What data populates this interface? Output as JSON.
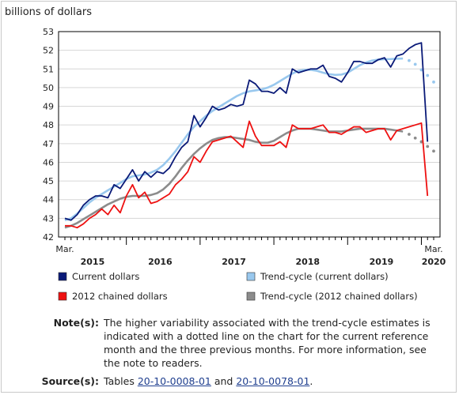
{
  "colors": {
    "current": "#0a1a78",
    "trend_current": "#99c8ee",
    "chained": "#ee1111",
    "trend_chained": "#8c8c8c",
    "axis": "#000000"
  },
  "chart_data": {
    "type": "line",
    "ylabel": "billions of dollars",
    "ylim": [
      42,
      53
    ],
    "yticks": [
      42,
      43,
      44,
      45,
      46,
      47,
      48,
      49,
      50,
      51,
      52,
      53
    ],
    "x_start_label": "Mar.",
    "x_end_label_month": "Mar.",
    "year_labels": [
      "2015",
      "2016",
      "2017",
      "2018",
      "2019",
      "2020"
    ],
    "x": [
      "2015-03",
      "2015-04",
      "2015-05",
      "2015-06",
      "2015-07",
      "2015-08",
      "2015-09",
      "2015-10",
      "2015-11",
      "2015-12",
      "2016-01",
      "2016-02",
      "2016-03",
      "2016-04",
      "2016-05",
      "2016-06",
      "2016-07",
      "2016-08",
      "2016-09",
      "2016-10",
      "2016-11",
      "2016-12",
      "2017-01",
      "2017-02",
      "2017-03",
      "2017-04",
      "2017-05",
      "2017-06",
      "2017-07",
      "2017-08",
      "2017-09",
      "2017-10",
      "2017-11",
      "2017-12",
      "2018-01",
      "2018-02",
      "2018-03",
      "2018-04",
      "2018-05",
      "2018-06",
      "2018-07",
      "2018-08",
      "2018-09",
      "2018-10",
      "2018-11",
      "2018-12",
      "2019-01",
      "2019-02",
      "2019-03",
      "2019-04",
      "2019-05",
      "2019-06",
      "2019-07",
      "2019-08",
      "2019-09",
      "2019-10",
      "2019-11",
      "2019-12",
      "2020-01",
      "2020-02",
      "2020-03"
    ],
    "series": [
      {
        "name": "Current dollars",
        "key": "current",
        "values": [
          43.0,
          42.9,
          43.2,
          43.7,
          44.0,
          44.2,
          44.2,
          44.1,
          44.8,
          44.6,
          45.1,
          45.6,
          45.0,
          45.5,
          45.2,
          45.5,
          45.4,
          45.7,
          46.3,
          46.8,
          47.1,
          48.5,
          47.9,
          48.4,
          49.0,
          48.8,
          48.9,
          49.1,
          49.0,
          49.1,
          50.4,
          50.2,
          49.8,
          49.8,
          49.7,
          50.0,
          49.7,
          51.0,
          50.8,
          50.9,
          51.0,
          51.0,
          51.2,
          50.6,
          50.5,
          50.3,
          50.8,
          51.4,
          51.4,
          51.3,
          51.3,
          51.5,
          51.6,
          51.1,
          51.7,
          51.8,
          52.1,
          52.3,
          52.4,
          47.1,
          null
        ],
        "dotted_from": null
      },
      {
        "name": "Trend-cycle (current dollars)",
        "key": "trend_current",
        "values": [
          42.9,
          43.0,
          43.25,
          43.55,
          43.85,
          44.1,
          44.3,
          44.5,
          44.7,
          44.9,
          45.1,
          45.25,
          45.3,
          45.35,
          45.45,
          45.6,
          45.85,
          46.2,
          46.6,
          47.05,
          47.5,
          47.9,
          48.2,
          48.5,
          48.75,
          48.95,
          49.15,
          49.35,
          49.55,
          49.7,
          49.8,
          49.85,
          49.9,
          50.0,
          50.15,
          50.35,
          50.55,
          50.75,
          50.9,
          50.95,
          50.95,
          50.9,
          50.8,
          50.72,
          50.68,
          50.7,
          50.8,
          51.0,
          51.2,
          51.35,
          51.45,
          51.5,
          51.52,
          51.53,
          51.55,
          51.56,
          51.45,
          51.25,
          50.95,
          50.65,
          50.3
        ],
        "dotted_from": 55
      },
      {
        "name": "2012 chained dollars",
        "key": "chained",
        "values": [
          42.6,
          42.6,
          42.5,
          42.7,
          43.0,
          43.2,
          43.5,
          43.2,
          43.7,
          43.3,
          44.2,
          44.8,
          44.1,
          44.4,
          43.8,
          43.9,
          44.1,
          44.3,
          44.8,
          45.1,
          45.5,
          46.3,
          46.0,
          46.6,
          47.1,
          47.2,
          47.3,
          47.4,
          47.1,
          46.8,
          48.2,
          47.4,
          46.9,
          46.9,
          46.9,
          47.1,
          46.8,
          48.0,
          47.8,
          47.8,
          47.8,
          47.9,
          48.0,
          47.6,
          47.6,
          47.5,
          47.7,
          47.9,
          47.9,
          47.6,
          47.7,
          47.8,
          47.8,
          47.2,
          47.7,
          47.8,
          47.9,
          48.0,
          48.1,
          44.2,
          null
        ],
        "dotted_from": null
      },
      {
        "name": "Trend-cycle (2012 chained dollars)",
        "key": "trend_chained",
        "values": [
          42.5,
          42.6,
          42.75,
          42.95,
          43.15,
          43.35,
          43.55,
          43.75,
          43.9,
          44.05,
          44.15,
          44.2,
          44.2,
          44.2,
          44.25,
          44.35,
          44.55,
          44.85,
          45.25,
          45.7,
          46.1,
          46.45,
          46.75,
          47.0,
          47.2,
          47.3,
          47.35,
          47.35,
          47.3,
          47.25,
          47.2,
          47.1,
          47.05,
          47.05,
          47.15,
          47.35,
          47.55,
          47.7,
          47.8,
          47.8,
          47.8,
          47.75,
          47.7,
          47.65,
          47.65,
          47.65,
          47.7,
          47.75,
          47.8,
          47.8,
          47.8,
          47.8,
          47.8,
          47.75,
          47.7,
          47.65,
          47.5,
          47.3,
          47.1,
          46.85,
          46.6
        ],
        "dotted_from": 55
      }
    ],
    "legend": [
      {
        "label": "Current dollars",
        "key": "current"
      },
      {
        "label": "Trend-cycle (current dollars)",
        "key": "trend_current"
      },
      {
        "label": "2012 chained dollars",
        "key": "chained"
      },
      {
        "label": "Trend-cycle (2012 chained dollars)",
        "key": "trend_chained"
      }
    ]
  },
  "notes": {
    "note_label": "Note(s):",
    "note_text": "The higher variability associated with the trend-cycle estimates is indicated with a dotted line on the chart for the current reference month and the three previous months. For more information, see the note to readers.",
    "source_label": "Source(s):",
    "source_prefix": "Tables ",
    "source_link1": "20-10-0008-01",
    "source_and": " and ",
    "source_link2": "20-10-0078-01",
    "source_suffix": "."
  }
}
